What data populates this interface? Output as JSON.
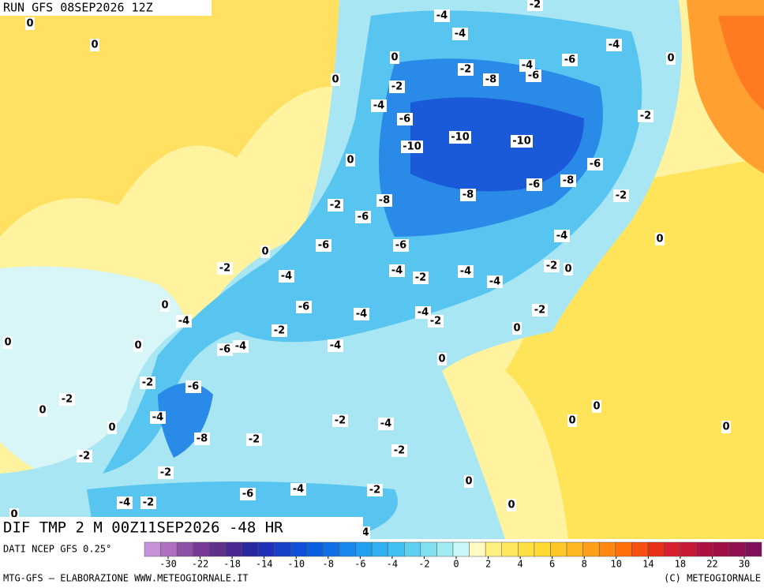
{
  "header": {
    "run": "RUN GFS 08SEP2026 12Z"
  },
  "map": {
    "labels": [
      "0",
      "0",
      "-4",
      "-4",
      "-2",
      "0",
      "-2",
      "-4",
      "-6",
      "-4",
      "0",
      "0",
      "-2",
      "-8",
      "-6",
      "-4",
      "-6",
      "-2",
      "-10",
      "-10",
      "-10",
      "0",
      "-6",
      "-8",
      "-8",
      "-6",
      "-8",
      "-2",
      "-2",
      "-6",
      "-4",
      "0",
      "-6",
      "-6",
      "0",
      "-2",
      "-4",
      "-2",
      "-4",
      "-2",
      "0",
      "-4",
      "-4",
      "-6",
      "0",
      "-4",
      "-4",
      "-4",
      "-2",
      "-2",
      "0",
      "-2",
      "0",
      "0",
      "-4",
      "-6",
      "-4",
      "0",
      "-2",
      "-6",
      "-2",
      "0",
      "0",
      "-4",
      "-2",
      "-4",
      "0",
      "0",
      "0",
      "-8",
      "-2",
      "-2",
      "-2",
      "-2",
      "0",
      "-6",
      "-4",
      "-2",
      "-4",
      "-2",
      "0",
      "0",
      "4"
    ]
  },
  "footer": {
    "title": "DIF TMP 2 M 00Z11SEP2026 -48 HR",
    "source": "DATI NCEP GFS 0.25°",
    "credit": "MTG-GFS — ELABORAZIONE WWW.METEOGIORNALE.IT",
    "copyright": "(C) METEOGIORNALE"
  },
  "colorbar": {
    "colors": [
      "#c890d8",
      "#b070c0",
      "#9050a8",
      "#7a3898",
      "#60308a",
      "#4a2a90",
      "#2828a0",
      "#2030b8",
      "#1840c8",
      "#1050d8",
      "#0860e0",
      "#1070e8",
      "#1888f0",
      "#20a0f0",
      "#30b0f0",
      "#40c0f0",
      "#60d0f0",
      "#80e0f0",
      "#a0ecf0",
      "#c8f8f8",
      "#fffac0",
      "#fff080",
      "#ffe860",
      "#ffe040",
      "#ffd830",
      "#ffc828",
      "#ffb820",
      "#ffa018",
      "#ff8810",
      "#ff7008",
      "#f85010",
      "#e83018",
      "#d82030",
      "#c81838",
      "#b01040",
      "#a01048",
      "#901050",
      "#801058"
    ],
    "ticks": [
      -30,
      -22,
      -18,
      -14,
      -10,
      -8,
      -6,
      -4,
      -2,
      0,
      2,
      4,
      6,
      8,
      10,
      14,
      18,
      22,
      30
    ]
  }
}
